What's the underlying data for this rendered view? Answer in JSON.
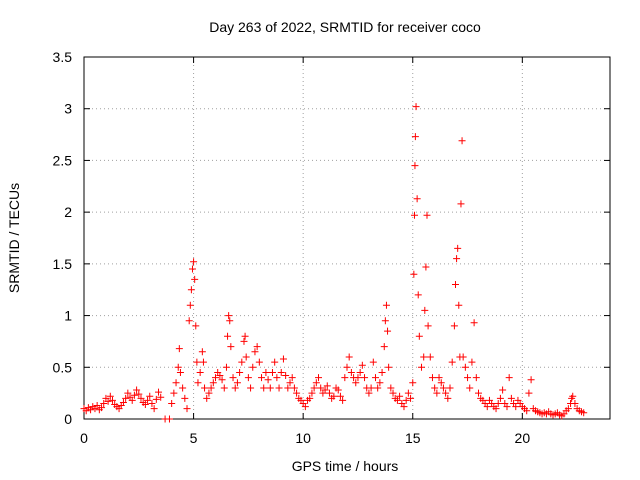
{
  "chart_data": {
    "type": "scatter",
    "title": "Day 263 of 2022, SRMTID for receiver coco",
    "xlabel": "GPS time / hours",
    "ylabel": "SRMTID / TECUs",
    "xlim": [
      0,
      24
    ],
    "ylim": [
      0,
      3.5
    ],
    "x_ticks": [
      0,
      5,
      10,
      15,
      20
    ],
    "x_tick_labels": [
      "0",
      "5",
      "10",
      "15",
      "20"
    ],
    "y_ticks": [
      0,
      0.5,
      1,
      1.5,
      2,
      2.5,
      3,
      3.5
    ],
    "y_tick_labels": [
      "0",
      "0.5",
      "1",
      "1.5",
      "2",
      "2.5",
      "3",
      "3.5"
    ],
    "grid": true,
    "marker": "+",
    "color": "#ff0000",
    "series": [
      {
        "name": "SRMTID",
        "points": [
          [
            0.0,
            0.1
          ],
          [
            0.1,
            0.08
          ],
          [
            0.2,
            0.11
          ],
          [
            0.3,
            0.09
          ],
          [
            0.4,
            0.12
          ],
          [
            0.5,
            0.1
          ],
          [
            0.6,
            0.13
          ],
          [
            0.7,
            0.09
          ],
          [
            0.8,
            0.11
          ],
          [
            0.9,
            0.15
          ],
          [
            1.0,
            0.2
          ],
          [
            1.1,
            0.17
          ],
          [
            1.2,
            0.22
          ],
          [
            1.3,
            0.18
          ],
          [
            1.4,
            0.14
          ],
          [
            1.5,
            0.12
          ],
          [
            1.6,
            0.1
          ],
          [
            1.7,
            0.13
          ],
          [
            1.8,
            0.16
          ],
          [
            1.9,
            0.2
          ],
          [
            2.0,
            0.25
          ],
          [
            2.1,
            0.21
          ],
          [
            2.2,
            0.18
          ],
          [
            2.3,
            0.23
          ],
          [
            2.4,
            0.28
          ],
          [
            2.5,
            0.24
          ],
          [
            2.6,
            0.2
          ],
          [
            2.7,
            0.16
          ],
          [
            2.8,
            0.14
          ],
          [
            2.9,
            0.18
          ],
          [
            3.0,
            0.22
          ],
          [
            3.1,
            0.15
          ],
          [
            3.2,
            0.1
          ],
          [
            3.3,
            0.19
          ],
          [
            3.4,
            0.26
          ],
          [
            3.5,
            0.21
          ],
          [
            3.7,
            0.0
          ],
          [
            3.9,
            0.0
          ],
          [
            4.0,
            0.15
          ],
          [
            4.1,
            0.25
          ],
          [
            4.2,
            0.35
          ],
          [
            4.3,
            0.5
          ],
          [
            4.35,
            0.68
          ],
          [
            4.4,
            0.45
          ],
          [
            4.5,
            0.3
          ],
          [
            4.6,
            0.2
          ],
          [
            4.7,
            0.1
          ],
          [
            4.8,
            0.95
          ],
          [
            4.85,
            1.1
          ],
          [
            4.9,
            1.25
          ],
          [
            4.95,
            1.45
          ],
          [
            5.0,
            1.52
          ],
          [
            5.05,
            1.35
          ],
          [
            5.1,
            0.9
          ],
          [
            5.15,
            0.55
          ],
          [
            5.2,
            0.35
          ],
          [
            5.3,
            0.45
          ],
          [
            5.4,
            0.65
          ],
          [
            5.45,
            0.55
          ],
          [
            5.5,
            0.3
          ],
          [
            5.6,
            0.2
          ],
          [
            5.7,
            0.25
          ],
          [
            5.8,
            0.3
          ],
          [
            5.9,
            0.35
          ],
          [
            6.0,
            0.4
          ],
          [
            6.1,
            0.45
          ],
          [
            6.2,
            0.42
          ],
          [
            6.3,
            0.38
          ],
          [
            6.4,
            0.3
          ],
          [
            6.5,
            0.5
          ],
          [
            6.55,
            0.8
          ],
          [
            6.6,
            1.0
          ],
          [
            6.65,
            0.95
          ],
          [
            6.7,
            0.7
          ],
          [
            6.8,
            0.4
          ],
          [
            6.9,
            0.3
          ],
          [
            7.0,
            0.35
          ],
          [
            7.1,
            0.45
          ],
          [
            7.2,
            0.55
          ],
          [
            7.3,
            0.75
          ],
          [
            7.35,
            0.8
          ],
          [
            7.4,
            0.6
          ],
          [
            7.5,
            0.4
          ],
          [
            7.6,
            0.3
          ],
          [
            7.7,
            0.5
          ],
          [
            7.8,
            0.65
          ],
          [
            7.9,
            0.7
          ],
          [
            8.0,
            0.55
          ],
          [
            8.1,
            0.4
          ],
          [
            8.2,
            0.3
          ],
          [
            8.3,
            0.45
          ],
          [
            8.4,
            0.38
          ],
          [
            8.5,
            0.3
          ],
          [
            8.6,
            0.45
          ],
          [
            8.7,
            0.55
          ],
          [
            8.8,
            0.4
          ],
          [
            8.9,
            0.3
          ],
          [
            9.0,
            0.45
          ],
          [
            9.1,
            0.58
          ],
          [
            9.2,
            0.42
          ],
          [
            9.3,
            0.3
          ],
          [
            9.4,
            0.35
          ],
          [
            9.5,
            0.4
          ],
          [
            9.6,
            0.3
          ],
          [
            9.7,
            0.25
          ],
          [
            9.8,
            0.2
          ],
          [
            9.9,
            0.18
          ],
          [
            10.0,
            0.15
          ],
          [
            10.1,
            0.12
          ],
          [
            10.2,
            0.18
          ],
          [
            10.3,
            0.2
          ],
          [
            10.4,
            0.25
          ],
          [
            10.5,
            0.3
          ],
          [
            10.6,
            0.35
          ],
          [
            10.7,
            0.4
          ],
          [
            10.8,
            0.3
          ],
          [
            10.9,
            0.25
          ],
          [
            11.0,
            0.28
          ],
          [
            11.1,
            0.32
          ],
          [
            11.2,
            0.25
          ],
          [
            11.3,
            0.2
          ],
          [
            11.4,
            0.22
          ],
          [
            11.5,
            0.3
          ],
          [
            11.6,
            0.28
          ],
          [
            11.7,
            0.22
          ],
          [
            11.8,
            0.18
          ],
          [
            11.9,
            0.4
          ],
          [
            12.0,
            0.5
          ],
          [
            12.1,
            0.6
          ],
          [
            12.2,
            0.45
          ],
          [
            12.3,
            0.4
          ],
          [
            12.4,
            0.35
          ],
          [
            12.5,
            0.4
          ],
          [
            12.6,
            0.45
          ],
          [
            12.7,
            0.52
          ],
          [
            12.8,
            0.4
          ],
          [
            12.9,
            0.3
          ],
          [
            13.0,
            0.25
          ],
          [
            13.1,
            0.3
          ],
          [
            13.2,
            0.55
          ],
          [
            13.3,
            0.4
          ],
          [
            13.4,
            0.3
          ],
          [
            13.5,
            0.35
          ],
          [
            13.6,
            0.45
          ],
          [
            13.7,
            0.7
          ],
          [
            13.75,
            0.95
          ],
          [
            13.8,
            1.1
          ],
          [
            13.85,
            0.85
          ],
          [
            13.9,
            0.5
          ],
          [
            14.0,
            0.3
          ],
          [
            14.1,
            0.25
          ],
          [
            14.2,
            0.2
          ],
          [
            14.3,
            0.18
          ],
          [
            14.4,
            0.22
          ],
          [
            14.5,
            0.15
          ],
          [
            14.6,
            0.12
          ],
          [
            14.7,
            0.18
          ],
          [
            14.8,
            0.25
          ],
          [
            14.9,
            0.2
          ],
          [
            15.0,
            0.35
          ],
          [
            15.05,
            1.4
          ],
          [
            15.08,
            1.97
          ],
          [
            15.1,
            2.45
          ],
          [
            15.12,
            2.73
          ],
          [
            15.15,
            3.02
          ],
          [
            15.2,
            2.13
          ],
          [
            15.25,
            1.2
          ],
          [
            15.3,
            0.8
          ],
          [
            15.4,
            0.5
          ],
          [
            15.5,
            0.6
          ],
          [
            15.55,
            1.05
          ],
          [
            15.6,
            1.47
          ],
          [
            15.65,
            1.97
          ],
          [
            15.7,
            0.9
          ],
          [
            15.8,
            0.6
          ],
          [
            15.9,
            0.4
          ],
          [
            16.0,
            0.3
          ],
          [
            16.1,
            0.25
          ],
          [
            16.2,
            0.4
          ],
          [
            16.3,
            0.35
          ],
          [
            16.4,
            0.3
          ],
          [
            16.5,
            0.25
          ],
          [
            16.6,
            0.2
          ],
          [
            16.7,
            0.3
          ],
          [
            16.8,
            0.55
          ],
          [
            16.9,
            0.9
          ],
          [
            16.95,
            1.3
          ],
          [
            17.0,
            1.55
          ],
          [
            17.05,
            1.65
          ],
          [
            17.1,
            1.1
          ],
          [
            17.15,
            0.6
          ],
          [
            17.2,
            2.08
          ],
          [
            17.25,
            2.69
          ],
          [
            17.3,
            0.6
          ],
          [
            17.4,
            0.5
          ],
          [
            17.5,
            0.4
          ],
          [
            17.6,
            0.3
          ],
          [
            17.7,
            0.55
          ],
          [
            17.8,
            0.93
          ],
          [
            17.9,
            0.4
          ],
          [
            18.0,
            0.25
          ],
          [
            18.1,
            0.2
          ],
          [
            18.2,
            0.18
          ],
          [
            18.3,
            0.15
          ],
          [
            18.4,
            0.12
          ],
          [
            18.5,
            0.18
          ],
          [
            18.6,
            0.15
          ],
          [
            18.7,
            0.12
          ],
          [
            18.8,
            0.1
          ],
          [
            18.9,
            0.15
          ],
          [
            19.0,
            0.2
          ],
          [
            19.1,
            0.28
          ],
          [
            19.2,
            0.15
          ],
          [
            19.3,
            0.12
          ],
          [
            19.4,
            0.4
          ],
          [
            19.5,
            0.2
          ],
          [
            19.6,
            0.15
          ],
          [
            19.7,
            0.12
          ],
          [
            19.8,
            0.18
          ],
          [
            19.9,
            0.15
          ],
          [
            20.0,
            0.12
          ],
          [
            20.1,
            0.1
          ],
          [
            20.2,
            0.08
          ],
          [
            20.3,
            0.25
          ],
          [
            20.4,
            0.38
          ],
          [
            20.5,
            0.1
          ],
          [
            20.6,
            0.08
          ],
          [
            20.7,
            0.07
          ],
          [
            20.8,
            0.06
          ],
          [
            20.9,
            0.05
          ],
          [
            21.0,
            0.06
          ],
          [
            21.1,
            0.05
          ],
          [
            21.2,
            0.07
          ],
          [
            21.3,
            0.05
          ],
          [
            21.4,
            0.04
          ],
          [
            21.5,
            0.05
          ],
          [
            21.6,
            0.06
          ],
          [
            21.7,
            0.04
          ],
          [
            21.8,
            0.03
          ],
          [
            21.9,
            0.05
          ],
          [
            22.0,
            0.08
          ],
          [
            22.1,
            0.1
          ],
          [
            22.2,
            0.15
          ],
          [
            22.25,
            0.2
          ],
          [
            22.3,
            0.22
          ],
          [
            22.4,
            0.15
          ],
          [
            22.5,
            0.1
          ],
          [
            22.6,
            0.08
          ],
          [
            22.7,
            0.07
          ],
          [
            22.8,
            0.06
          ]
        ]
      }
    ]
  }
}
